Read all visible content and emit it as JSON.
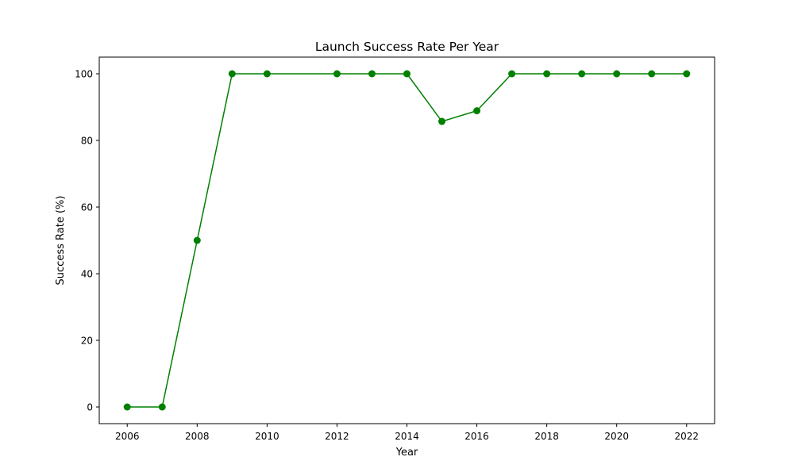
{
  "chart_data": {
    "type": "line",
    "title": "Launch Success Rate Per Year",
    "xlabel": "Year",
    "ylabel": "Success Rate (%)",
    "x": [
      2006,
      2007,
      2008,
      2009,
      2010,
      2012,
      2013,
      2014,
      2015,
      2016,
      2017,
      2018,
      2019,
      2020,
      2021,
      2022
    ],
    "series": [
      {
        "values": [
          0,
          0,
          50,
          100,
          100,
          100,
          100,
          100,
          85.7,
          88.9,
          100,
          100,
          100,
          100,
          100,
          100
        ],
        "color": "#008000",
        "marker": "circle"
      }
    ],
    "xlim": [
      2005.2,
      2022.8
    ],
    "ylim": [
      -5,
      105
    ],
    "xticks": [
      2006,
      2008,
      2010,
      2012,
      2014,
      2016,
      2018,
      2020,
      2022
    ],
    "yticks": [
      0,
      20,
      40,
      60,
      80,
      100
    ],
    "grid": false,
    "legend": "none"
  }
}
